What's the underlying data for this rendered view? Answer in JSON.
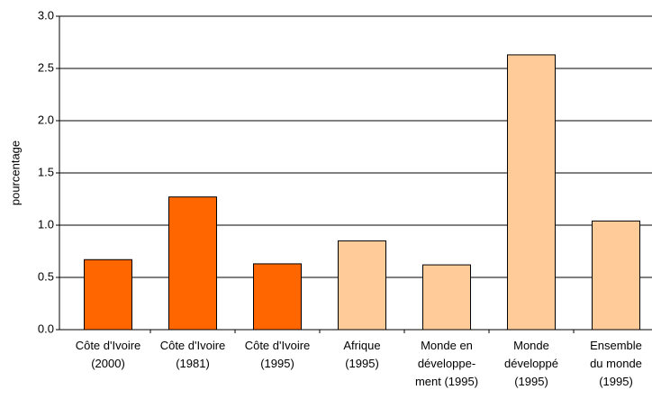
{
  "chart_data": {
    "type": "bar",
    "y_label": "pourcentage",
    "categories": [
      [
        "Côte d'Ivoire",
        "(2000)"
      ],
      [
        "Côte d'Ivoire",
        "(1981)"
      ],
      [
        "Côte d'Ivoire",
        "(1995)"
      ],
      [
        "Afrique",
        "(1995)"
      ],
      [
        "Monde en",
        "développe-",
        "ment (1995)"
      ],
      [
        "Monde",
        "développé",
        "(1995)"
      ],
      [
        "Ensemble",
        "du monde",
        "(1995)"
      ]
    ],
    "values": [
      0.67,
      1.27,
      0.63,
      0.85,
      0.62,
      2.63,
      1.04
    ],
    "colors": [
      "#ff6600",
      "#ff6600",
      "#ff6600",
      "#ffcc99",
      "#ffcc99",
      "#ffcc99",
      "#ffcc99"
    ],
    "ylim": [
      0,
      3
    ],
    "yticks": [
      {
        "value": 0,
        "label": "0.0"
      },
      0.5,
      {
        "value": 1,
        "label": "1.0"
      },
      1.5,
      {
        "value": 2,
        "label": "2.0"
      },
      2.5,
      {
        "value": 3,
        "label": "3.0"
      }
    ],
    "grid": true
  }
}
